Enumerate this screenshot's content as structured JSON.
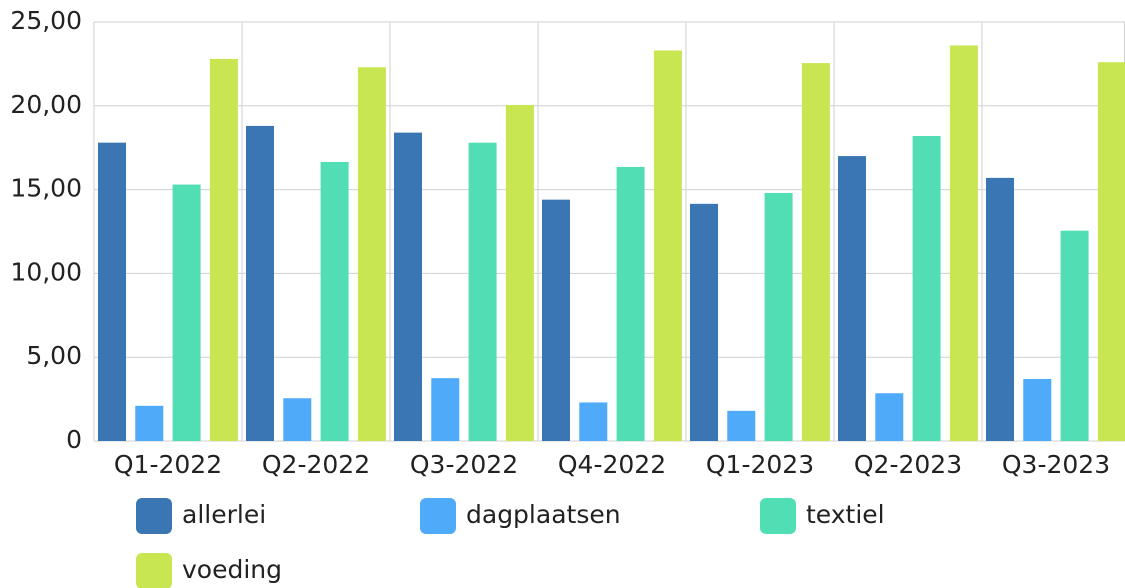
{
  "chart_data": {
    "type": "bar",
    "categories": [
      "Q1-2022",
      "Q2-2022",
      "Q3-2022",
      "Q4-2022",
      "Q1-2023",
      "Q2-2023",
      "Q3-2023"
    ],
    "series": [
      {
        "name": "allerlei",
        "color": "#3a76b4",
        "values": [
          17.8,
          18.8,
          18.4,
          14.4,
          14.15,
          17.0,
          15.7
        ]
      },
      {
        "name": "dagplaatsen",
        "color": "#4fabfa",
        "values": [
          2.1,
          2.55,
          3.75,
          2.3,
          1.8,
          2.85,
          3.7
        ]
      },
      {
        "name": "textiel",
        "color": "#52deb4",
        "values": [
          15.3,
          16.65,
          17.8,
          16.35,
          14.8,
          18.2,
          12.55
        ]
      },
      {
        "name": "voeding",
        "color": "#c7e651",
        "values": [
          22.8,
          22.3,
          20.05,
          23.3,
          22.55,
          23.6,
          22.6
        ]
      }
    ],
    "ylim": [
      0,
      25
    ],
    "yticks": [
      0,
      {
        "value": 5,
        "label": "5,00"
      },
      {
        "value": 10,
        "label": "10,00"
      },
      {
        "value": 15,
        "label": "15,00"
      },
      {
        "value": 20,
        "label": "20,00"
      },
      {
        "value": 25,
        "label": "25,00"
      }
    ],
    "grid": true,
    "legend": "bottom"
  }
}
